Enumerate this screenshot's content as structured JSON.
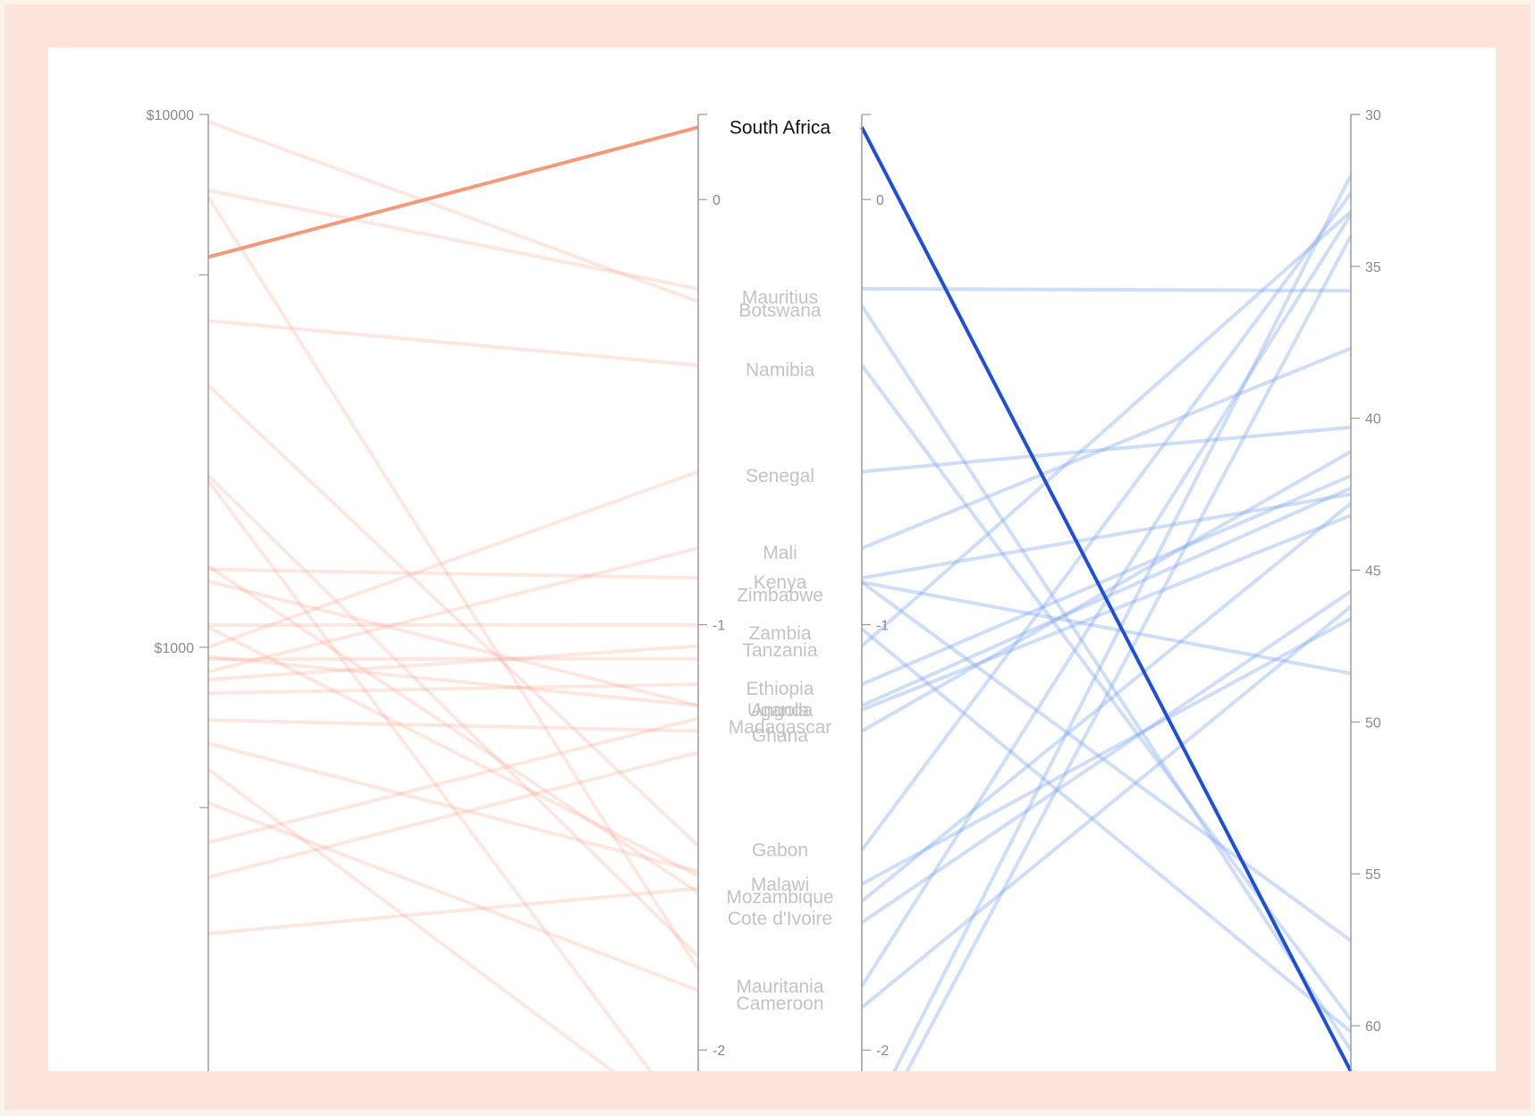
{
  "chart_data": {
    "type": "parallel-coordinates",
    "title": "",
    "highlight": "South Africa",
    "colors": {
      "left_faint": "#f7a893",
      "left_highlight": "#f4997a",
      "right_faint": "#7fa5ec",
      "right_highlight": "#1d4fdb"
    },
    "axes": [
      {
        "name": "gdp",
        "label": "",
        "scale": "log",
        "domain": [
          10000,
          160
        ],
        "ticks": [
          10000,
          5000,
          1000,
          500
        ],
        "tick_labels": [
          "$10000",
          "",
          "$1000",
          ""
        ]
      },
      {
        "name": "value_a",
        "label": "",
        "scale": "linear",
        "domain": [
          0.2,
          -2.05
        ],
        "ticks": [
          0,
          -1,
          -2
        ],
        "tick_labels": [
          "0",
          "-1",
          "-2"
        ]
      },
      {
        "name": "value_b",
        "label": "",
        "scale": "linear",
        "domain": [
          0.2,
          -2.05
        ],
        "ticks": [
          0,
          -1,
          -2
        ],
        "tick_labels": [
          "0",
          "-1",
          "-2"
        ]
      },
      {
        "name": "value_c",
        "label": "",
        "scale": "linear",
        "domain": [
          30,
          61.5
        ],
        "ticks": [
          30,
          35,
          40,
          45,
          50,
          55,
          60
        ],
        "tick_labels": [
          "30",
          "35",
          "40",
          "45",
          "50",
          "55",
          "60"
        ]
      }
    ],
    "country_labels": [
      {
        "name": "South Africa",
        "value": 0.17
      },
      {
        "name": "Mauritius",
        "value": -0.23
      },
      {
        "name": "Botswana",
        "value": -0.26
      },
      {
        "name": "Namibia",
        "value": -0.4
      },
      {
        "name": "Senegal",
        "value": -0.65
      },
      {
        "name": "Mali",
        "value": -0.83
      },
      {
        "name": "Kenya",
        "value": -0.9
      },
      {
        "name": "Zimbabwe",
        "value": -0.93
      },
      {
        "name": "Zambia",
        "value": -1.02
      },
      {
        "name": "Tanzania",
        "value": -1.06
      },
      {
        "name": "Ethiopia",
        "value": -1.15
      },
      {
        "name": "Uganda",
        "value": -1.2
      },
      {
        "name": "Angola",
        "value": -1.2
      },
      {
        "name": "Madagascar",
        "value": -1.24
      },
      {
        "name": "Ghana",
        "value": -1.26
      },
      {
        "name": "Gabon",
        "value": -1.53
      },
      {
        "name": "Malawi",
        "value": -1.61
      },
      {
        "name": "Mozambique",
        "value": -1.64
      },
      {
        "name": "Cote d'Ivoire",
        "value": -1.69
      },
      {
        "name": "Mauritania",
        "value": -1.85
      },
      {
        "name": "Cameroon",
        "value": -1.89
      }
    ],
    "left_lines": [
      {
        "gdp": 5400,
        "value_a": 0.17,
        "highlight": true
      },
      {
        "gdp": 9700,
        "value_a": -0.24
      },
      {
        "gdp": 7200,
        "value_a": -0.21
      },
      {
        "gdp": 7000,
        "value_a": -1.81
      },
      {
        "gdp": 4100,
        "value_a": -0.39
      },
      {
        "gdp": 3100,
        "value_a": -1.52
      },
      {
        "gdp": 2100,
        "value_a": -1.78
      },
      {
        "gdp": 1400,
        "value_a": -0.89
      },
      {
        "gdp": 1330,
        "value_a": -1.19
      },
      {
        "gdp": 1100,
        "value_a": -1.0
      },
      {
        "gdp": 1000,
        "value_a": -0.64
      },
      {
        "gdp": 960,
        "value_a": -1.19
      },
      {
        "gdp": 900,
        "value_a": -0.82
      },
      {
        "gdp": 820,
        "value_a": -1.14
      },
      {
        "gdp": 730,
        "value_a": -1.25
      },
      {
        "gdp": 660,
        "value_a": -1.58
      },
      {
        "gdp": 1420,
        "value_a": -1.63
      },
      {
        "gdp": 1090,
        "value_a": -1.59
      },
      {
        "gdp": 590,
        "value_a": -2.2
      },
      {
        "gdp": 510,
        "value_a": -1.86
      },
      {
        "gdp": 430,
        "value_a": -1.22
      },
      {
        "gdp": 950,
        "value_a": -1.08
      },
      {
        "gdp": 370,
        "value_a": -1.3
      },
      {
        "gdp": 870,
        "value_a": -1.05
      },
      {
        "gdp": 290,
        "value_a": -1.62
      },
      {
        "gdp": 2050,
        "value_a": -2.2
      }
    ],
    "right_lines": [
      {
        "value_b": 0.17,
        "value_c": 61.5,
        "highlight": true
      },
      {
        "value_b": -0.21,
        "value_c": 35.8
      },
      {
        "value_b": -0.25,
        "value_c": 60.8
      },
      {
        "value_b": -0.39,
        "value_c": 59.8
      },
      {
        "value_b": -0.64,
        "value_c": 40.3
      },
      {
        "value_b": -0.82,
        "value_c": 37.7
      },
      {
        "value_b": -0.9,
        "value_c": 48.4
      },
      {
        "value_b": -0.89,
        "value_c": 42.5
      },
      {
        "value_b": -1.01,
        "value_c": 60.2
      },
      {
        "value_b": -1.05,
        "value_c": 33.2
      },
      {
        "value_b": -1.14,
        "value_c": 41.9
      },
      {
        "value_b": -1.19,
        "value_c": 42.3
      },
      {
        "value_b": -1.2,
        "value_c": 43.2
      },
      {
        "value_b": -1.25,
        "value_c": 41.1
      },
      {
        "value_b": -1.53,
        "value_c": 32.6
      },
      {
        "value_b": -1.61,
        "value_c": 46.6
      },
      {
        "value_b": -1.65,
        "value_c": 42.8
      },
      {
        "value_b": -1.7,
        "value_c": 45.7
      },
      {
        "value_b": -1.85,
        "value_c": 33.3
      },
      {
        "value_b": -1.9,
        "value_c": 46.2
      },
      {
        "value_b": -2.2,
        "value_c": 32.0
      },
      {
        "value_b": -2.25,
        "value_c": 34.0
      },
      {
        "value_b": -0.9,
        "value_c": 57.2
      }
    ]
  }
}
